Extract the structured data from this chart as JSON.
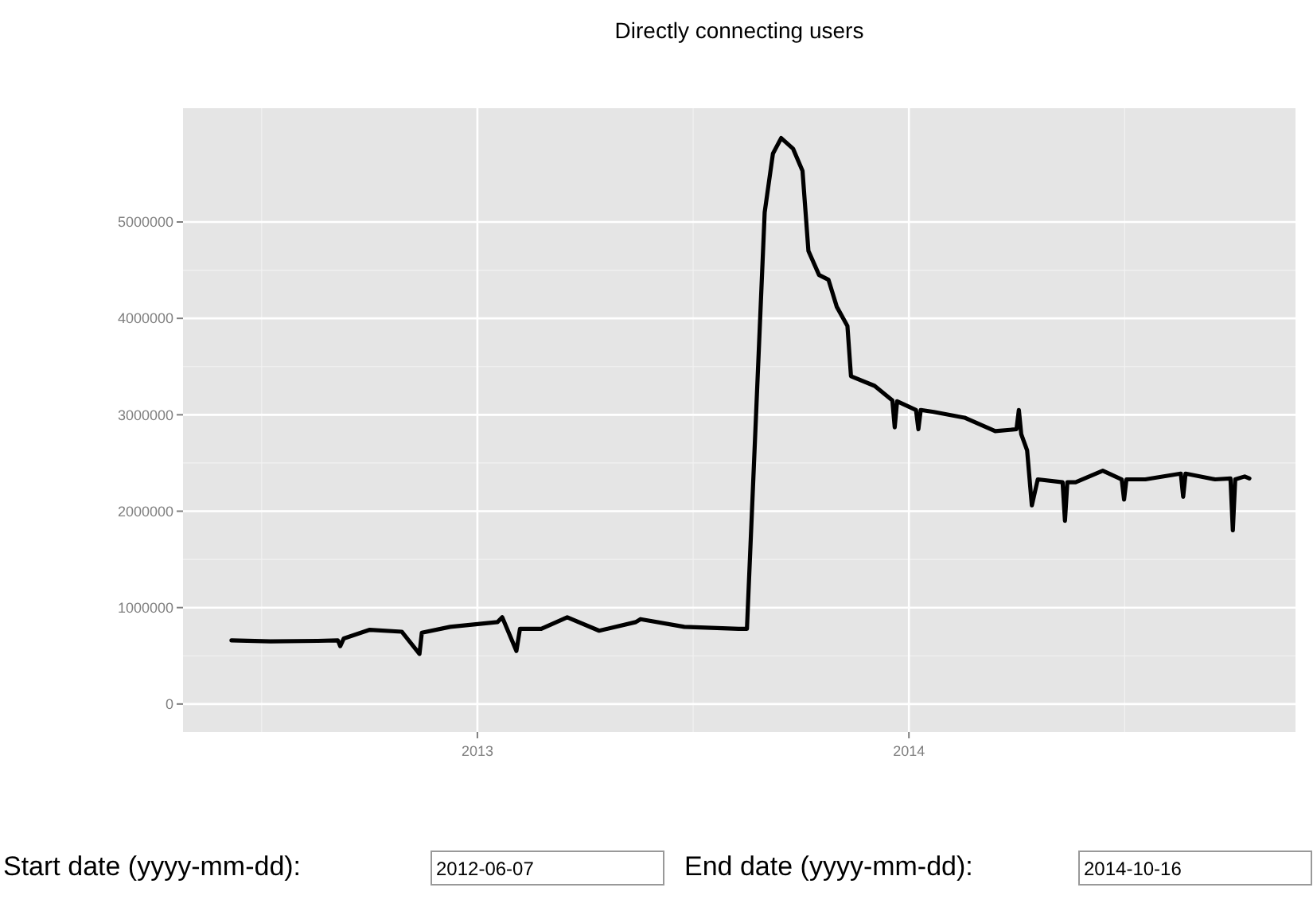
{
  "chart_data": {
    "type": "line",
    "title": "Directly connecting users",
    "x": [
      "2012-06-07",
      "2012-07-10",
      "2012-08-19",
      "2012-09-05",
      "2012-09-07",
      "2012-09-10",
      "2012-10-02",
      "2012-10-29",
      "2012-11-13",
      "2012-11-15",
      "2012-12-09",
      "2013-01-18",
      "2013-01-22",
      "2013-02-03",
      "2013-02-06",
      "2013-02-24",
      "2013-03-18",
      "2013-04-14",
      "2013-05-15",
      "2013-05-19",
      "2013-06-25",
      "2013-08-10",
      "2013-08-17",
      "2013-09-01",
      "2013-09-08",
      "2013-09-15",
      "2013-09-25",
      "2013-10-03",
      "2013-10-08",
      "2013-10-17",
      "2013-10-25",
      "2013-11-01",
      "2013-11-10",
      "2013-11-13",
      "2013-12-03",
      "2013-12-18",
      "2013-12-20",
      "2013-12-22",
      "2014-01-07",
      "2014-01-09",
      "2014-01-11",
      "2014-01-22",
      "2014-02-17",
      "2014-03-15",
      "2014-04-02",
      "2014-04-04",
      "2014-04-06",
      "2014-04-11",
      "2014-04-15",
      "2014-04-20",
      "2014-05-11",
      "2014-05-13",
      "2014-05-15",
      "2014-05-22",
      "2014-06-14",
      "2014-06-30",
      "2014-07-02",
      "2014-07-04",
      "2014-07-20",
      "2014-08-19",
      "2014-08-21",
      "2014-08-23",
      "2014-09-17",
      "2014-09-30",
      "2014-10-02",
      "2014-10-04",
      "2014-10-12",
      "2014-10-16"
    ],
    "series": [
      {
        "color": "#000000",
        "values": [
          660000,
          650000,
          655000,
          660000,
          600000,
          680000,
          770000,
          750000,
          520000,
          740000,
          800000,
          850000,
          900000,
          550000,
          780000,
          780000,
          900000,
          760000,
          850000,
          880000,
          800000,
          780000,
          780000,
          5100000,
          5710000,
          5870000,
          5760000,
          5530000,
          4700000,
          4450000,
          4400000,
          4120000,
          3920000,
          3400000,
          3300000,
          3150000,
          2870000,
          3140000,
          3050000,
          2850000,
          3050000,
          3030000,
          2970000,
          2830000,
          2850000,
          3050000,
          2800000,
          2630000,
          2060000,
          2330000,
          2300000,
          1900000,
          2300000,
          2300000,
          2420000,
          2330000,
          2120000,
          2330000,
          2330000,
          2390000,
          2150000,
          2390000,
          2330000,
          2340000,
          1800000,
          2330000,
          2360000,
          2340000
        ]
      }
    ],
    "xlim": [
      "2012-04-27",
      "2014-11-24"
    ],
    "xticks": [
      {
        "value": "2013-01-01",
        "label": "2013"
      },
      {
        "value": "2014-01-01",
        "label": "2014"
      }
    ],
    "ylim": [
      -290000,
      6180000
    ],
    "yticks": [
      0,
      1000000,
      2000000,
      3000000,
      4000000,
      5000000
    ],
    "grid": true,
    "line_style": "solid",
    "annotations": [
      "Start date (yyyy-mm-dd):",
      "2012-06-07",
      "End date (yyyy-mm-dd):",
      "2014-10-16"
    ]
  }
}
